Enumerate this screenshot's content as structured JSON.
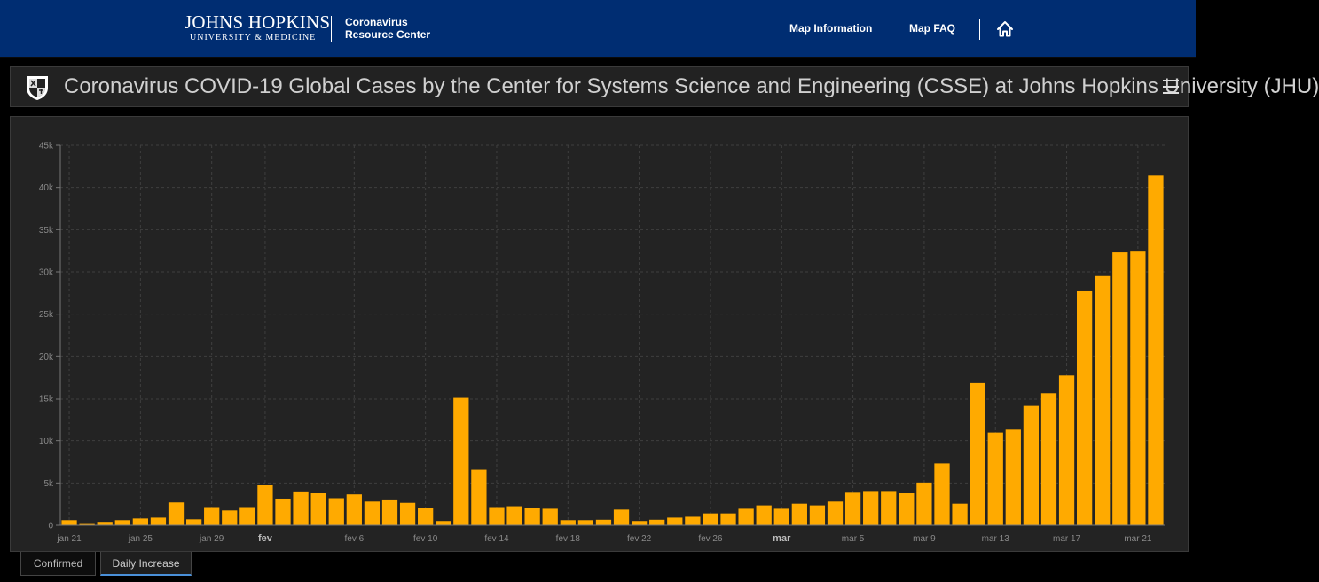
{
  "topbar": {
    "logo_line1": "JOHNS HOPKINS",
    "logo_line2": "UNIVERSITY & MEDICINE",
    "crc_line1": "Coronavirus",
    "crc_line2": "Resource Center",
    "nav_map_information": "Map Information",
    "nav_map_faq": "Map FAQ",
    "bg_color": "#002d72",
    "home_icon": "home-icon"
  },
  "header": {
    "title": "Coronavirus COVID-19 Global Cases by the Center for Systems Science and Engineering (CSSE) at Johns Hopkins University (JHU)",
    "crest_icon": "crest-icon",
    "menu_icon": "hamburger-menu-icon"
  },
  "tabs": [
    {
      "label": "Confirmed",
      "active": false
    },
    {
      "label": "Daily Increase",
      "active": true
    }
  ],
  "chart_data": {
    "type": "bar",
    "bar_color": "#ffaa00",
    "ylim": [
      0,
      45000
    ],
    "y_ticks": [
      {
        "value": 0,
        "label": "0"
      },
      {
        "value": 5000,
        "label": "5k"
      },
      {
        "value": 10000,
        "label": "10k"
      },
      {
        "value": 15000,
        "label": "15k"
      },
      {
        "value": 20000,
        "label": "20k"
      },
      {
        "value": 25000,
        "label": "25k"
      },
      {
        "value": 30000,
        "label": "30k"
      },
      {
        "value": 35000,
        "label": "35k"
      },
      {
        "value": 40000,
        "label": "40k"
      },
      {
        "value": 45000,
        "label": "45k"
      }
    ],
    "x_ticks": [
      {
        "index": 0,
        "label": "jan 21",
        "bold": false
      },
      {
        "index": 4,
        "label": "jan 25",
        "bold": false
      },
      {
        "index": 8,
        "label": "jan 29",
        "bold": false
      },
      {
        "index": 11,
        "label": "fev",
        "bold": true
      },
      {
        "index": 16,
        "label": "fev 6",
        "bold": false
      },
      {
        "index": 20,
        "label": "fev 10",
        "bold": false
      },
      {
        "index": 24,
        "label": "fev 14",
        "bold": false
      },
      {
        "index": 28,
        "label": "fev 18",
        "bold": false
      },
      {
        "index": 32,
        "label": "fev 22",
        "bold": false
      },
      {
        "index": 36,
        "label": "fev 26",
        "bold": false
      },
      {
        "index": 40,
        "label": "mar",
        "bold": true
      },
      {
        "index": 44,
        "label": "mar 5",
        "bold": false
      },
      {
        "index": 48,
        "label": "mar 9",
        "bold": false
      },
      {
        "index": 52,
        "label": "mar 13",
        "bold": false
      },
      {
        "index": 56,
        "label": "mar 17",
        "bold": false
      },
      {
        "index": 60,
        "label": "mar 21",
        "bold": false
      }
    ],
    "grid": true,
    "values": [
      600,
      250,
      400,
      600,
      800,
      900,
      2700,
      700,
      2150,
      1750,
      2150,
      4750,
      3150,
      4000,
      3850,
      3200,
      3650,
      2800,
      3050,
      2650,
      2050,
      500,
      15150,
      6550,
      2150,
      2250,
      2050,
      1950,
      600,
      600,
      650,
      1850,
      500,
      650,
      900,
      1000,
      1400,
      1400,
      1950,
      2350,
      1950,
      2550,
      2350,
      2800,
      3950,
      4050,
      4050,
      3850,
      5050,
      7300,
      2550,
      16900,
      10950,
      11400,
      14200,
      15600,
      17800,
      27800,
      29500,
      32300,
      32500,
      41400
    ]
  }
}
